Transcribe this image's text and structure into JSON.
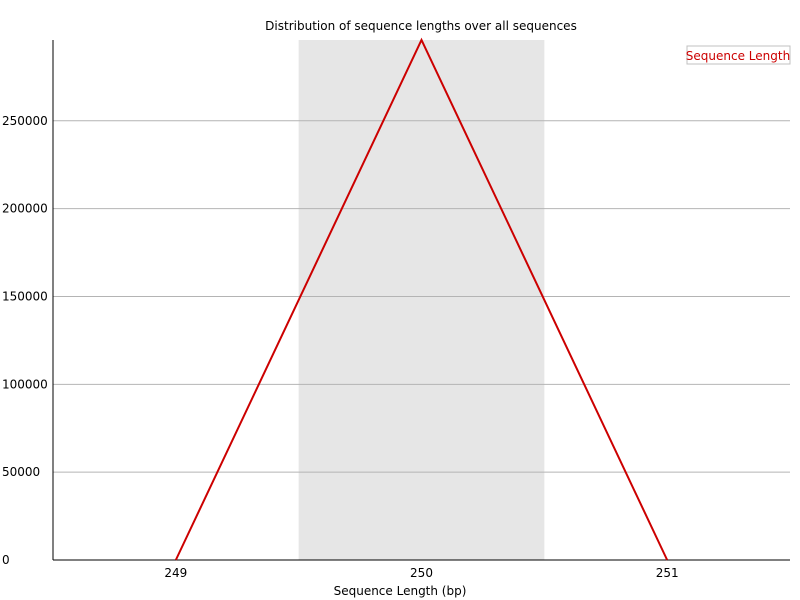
{
  "chart_data": {
    "type": "line",
    "title": "Distribution of sequence lengths over all sequences",
    "xlabel": "Sequence Length (bp)",
    "ylabel": "",
    "categories": [
      "249",
      "250",
      "251"
    ],
    "series": [
      {
        "name": "Sequence Length",
        "values": [
          0,
          296000,
          0
        ],
        "color": "#cc0000"
      }
    ],
    "yticks": [
      0,
      50000,
      100000,
      150000,
      200000,
      250000
    ],
    "ylim": [
      0,
      296000
    ],
    "highlight_category": "250",
    "highlight_color": "#e6e6e6",
    "grid": true,
    "grid_color": "#b4b4b4",
    "legend_position": "top-right"
  }
}
